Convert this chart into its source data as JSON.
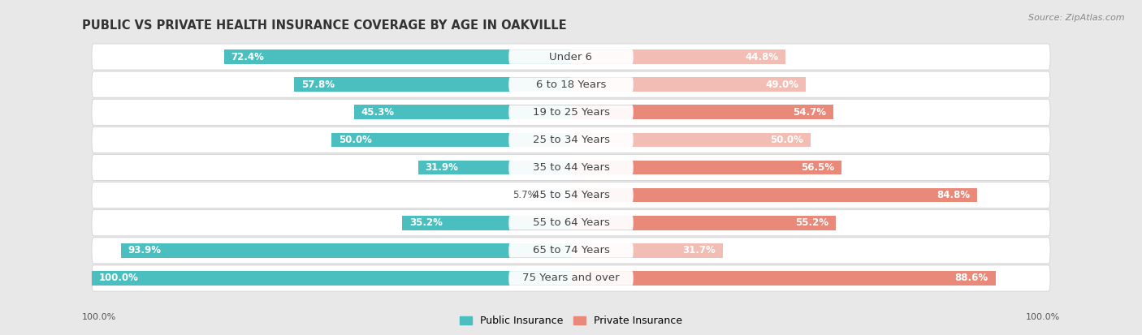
{
  "title": "PUBLIC VS PRIVATE HEALTH INSURANCE COVERAGE BY AGE IN OAKVILLE",
  "source": "Source: ZipAtlas.com",
  "categories": [
    "Under 6",
    "6 to 18 Years",
    "19 to 25 Years",
    "25 to 34 Years",
    "35 to 44 Years",
    "45 to 54 Years",
    "55 to 64 Years",
    "65 to 74 Years",
    "75 Years and over"
  ],
  "public_values": [
    72.4,
    57.8,
    45.3,
    50.0,
    31.9,
    5.7,
    35.2,
    93.9,
    100.0
  ],
  "private_values": [
    44.8,
    49.0,
    54.7,
    50.0,
    56.5,
    84.8,
    55.2,
    31.7,
    88.6
  ],
  "public_color": "#4bbfc0",
  "private_color": "#e8897a",
  "public_color_light": "#a8dfe0",
  "private_color_light": "#f2bdb5",
  "bg_color": "#e8e8e8",
  "bar_bg_color": "#f0f0f0",
  "row_bg_color": "#f5f5f5",
  "separator_color": "#cccccc",
  "title_fontsize": 10.5,
  "label_fontsize": 9.5,
  "value_fontsize": 8.5,
  "legend_fontsize": 9,
  "axis_label_left": "100.0%",
  "axis_label_right": "100.0%",
  "max_val": 100.0
}
